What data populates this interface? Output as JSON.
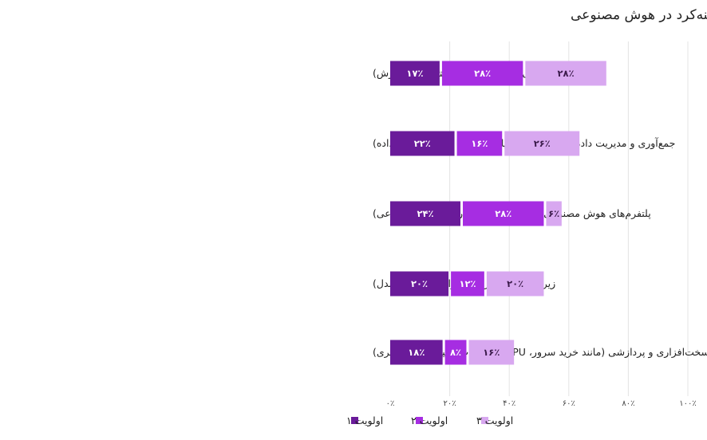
{
  "chart_data": {
    "type": "bar",
    "orientation": "horizontal",
    "stacked": true,
    "title": "اولویت هزینه‌کرد در هوش مصنوعی",
    "categories": [
      "نیروی انسانی متخصص (مانند استخدام یا آموزش)",
      "جمع‌آوری و مدیریت داده‌ها (مانند ساخت پایگاه داده‌ها و ذخیره‌سازی داده)",
      "پلتفرم‌های هوش مصنوعی (خرید اکانت از ابزارهای هوش مصنوعی)",
      "زیرساخت نرم‌افزاری (ابزارهای توسعه مدل)",
      "زیرساخت سخت‌افزاری و پردازشی (مانند خرید سرور، GPU و تجهیزات ذخیره‌سازی یا ابری)"
    ],
    "series": [
      {
        "name": "اولویت ۱",
        "values": [
          17,
          22,
          24,
          20,
          18
        ],
        "labels": [
          "۱۷٪",
          "۲۲٪",
          "۲۴٪",
          "۲۰٪",
          "۱۸٪"
        ],
        "color": "#6a1b9a",
        "label_color": "#ffffff"
      },
      {
        "name": "اولویت ۲",
        "values": [
          28,
          16,
          28,
          12,
          8
        ],
        "labels": [
          "۲۸٪",
          "۱۶٪",
          "۲۸٪",
          "۱۲٪",
          "۸٪"
        ],
        "color": "#a62de2",
        "label_color": "#ffffff"
      },
      {
        "name": "اولویت ۳",
        "values": [
          28,
          26,
          6,
          20,
          16
        ],
        "labels": [
          "۲۸٪",
          "۲۶٪",
          "۶٪",
          "۲۰٪",
          "۱۶٪"
        ],
        "color": "#d8a8f0",
        "label_color": "#3a1a4a"
      }
    ],
    "xlim": [
      0,
      100
    ],
    "x_ticks": [
      0,
      20,
      40,
      60,
      80,
      100
    ],
    "x_tick_labels": [
      "۰٪",
      "۲۰٪",
      "۴۰٪",
      "۶۰٪",
      "۸۰٪",
      "۱۰۰٪"
    ],
    "grid": true,
    "legend_position": "bottom"
  }
}
